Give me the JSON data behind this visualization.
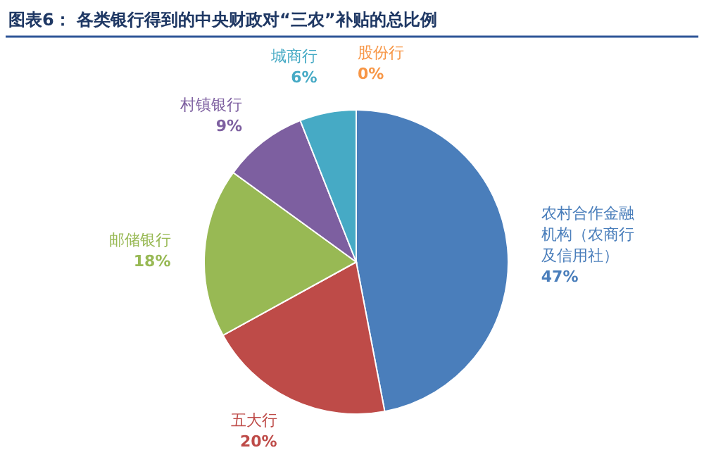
{
  "chart_data": {
    "type": "pie",
    "title": "图表6：  各类银行得到的中央财政对“三农”补贴的总比例",
    "categories": [
      "农村合作金融机构（农商行及信用社）",
      "五大行",
      "邮储银行",
      "村镇银行",
      "城商行",
      "股份行"
    ],
    "values": [
      47,
      20,
      18,
      9,
      6,
      0
    ],
    "colors": [
      "#4a7ebb",
      "#be4b48",
      "#98b954",
      "#7d5fa0",
      "#46aac5",
      "#f79646"
    ],
    "value_labels": [
      "47%",
      "20%",
      "18%",
      "9%",
      "6%",
      "0%"
    ]
  }
}
